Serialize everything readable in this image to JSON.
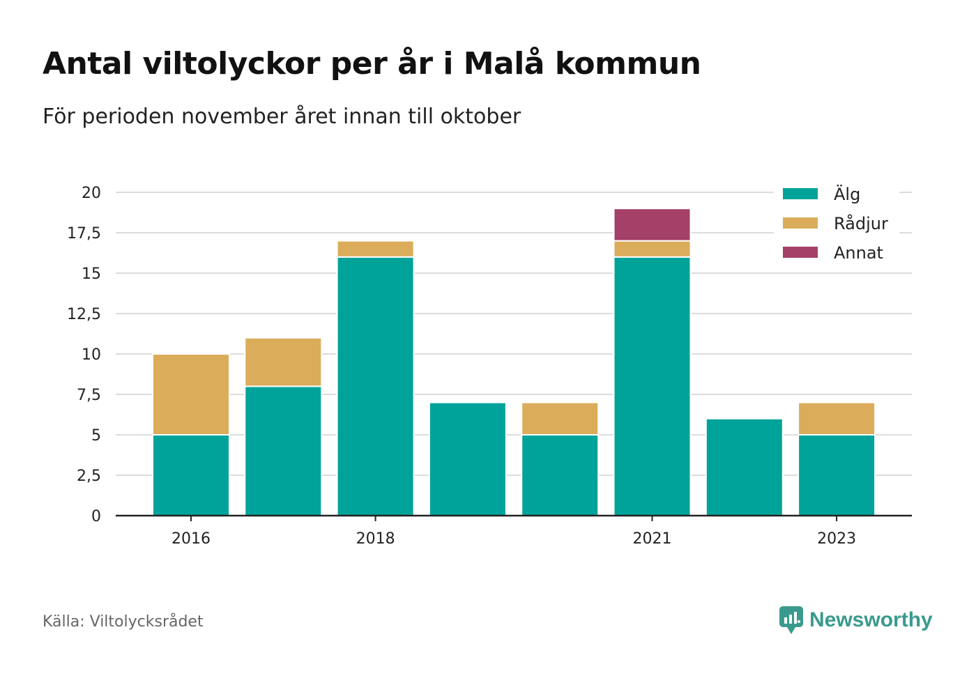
{
  "header": {
    "title": "Antal viltolyckor per år i Malå kommun",
    "subtitle": "För perioden november året innan till oktober"
  },
  "footer": {
    "source": "Källa: Viltolycksrådet",
    "brand": "Newsworthy",
    "brand_color": "#3a9a8e"
  },
  "chart_data": {
    "type": "bar",
    "stacked": true,
    "categories": [
      "2016",
      "2017",
      "2018",
      "2019",
      "2020",
      "2021",
      "2022",
      "2023"
    ],
    "x_tick_labels": [
      "2016",
      "",
      "2018",
      "",
      "",
      "2021",
      "",
      "2023"
    ],
    "series": [
      {
        "name": "Älg",
        "color": "#00a39a",
        "values": [
          5,
          8,
          16,
          7,
          5,
          16,
          6,
          5
        ]
      },
      {
        "name": "Rådjur",
        "color": "#dbac5a",
        "values": [
          5,
          3,
          1,
          0,
          2,
          1,
          0,
          2
        ]
      },
      {
        "name": "Annat",
        "color": "#a54068",
        "values": [
          0,
          0,
          0,
          0,
          0,
          2,
          0,
          0
        ]
      }
    ],
    "ylim": [
      0,
      20
    ],
    "y_ticks": [
      0,
      2.5,
      5,
      7.5,
      10,
      12.5,
      15,
      17.5,
      20
    ],
    "y_tick_labels": [
      "0",
      "2,5",
      "5",
      "7,5",
      "10",
      "12,5",
      "15",
      "17,5",
      "20"
    ],
    "grid": true,
    "legend_position": "top-right"
  }
}
